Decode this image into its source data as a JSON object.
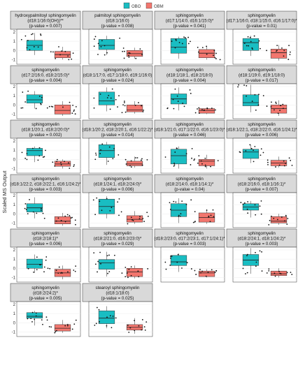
{
  "chart_data": {
    "type": "box",
    "legend": {
      "position": "top",
      "entries": [
        {
          "label": "OBO",
          "color": "#19BDC2"
        },
        {
          "label": "OBM",
          "color": "#F2766E"
        }
      ]
    },
    "ylabel": "Scaled MS Output",
    "yticks": [
      -1,
      0,
      1,
      2
    ],
    "ylim": [
      -1.5,
      2.3
    ],
    "groups": [
      "OBO",
      "OBM"
    ],
    "panels": [
      {
        "strip": [
          "hydroxypalmitoyl sphingomyelin",
          "(d18:1/16:0(OH))**",
          "(p-value = 0.007)"
        ],
        "boxes": [
          {
            "q1": 0.0,
            "median": 0.55,
            "q3": 1.1,
            "lo": -0.5,
            "hi": 1.9
          },
          {
            "q1": -0.8,
            "median": -0.45,
            "q3": -0.1,
            "lo": -1.0,
            "hi": 0.4
          }
        ]
      },
      {
        "strip": [
          "palmitoyl sphingomyelin",
          "(d18:1/16:0)",
          "(p-value = 0.008)"
        ],
        "boxes": [
          {
            "q1": 0.1,
            "median": 0.55,
            "q3": 1.2,
            "lo": -0.5,
            "hi": 1.6
          },
          {
            "q1": -0.65,
            "median": -0.35,
            "q3": 0.0,
            "lo": -0.9,
            "hi": 0.3
          }
        ]
      },
      {
        "strip": [
          "sphingomyelin",
          "(d17:1/14:0, d16:1/15:0)*",
          "(p-value = 0.041)"
        ],
        "boxes": [
          {
            "q1": -0.3,
            "median": 0.35,
            "q3": 1.3,
            "lo": -0.9,
            "hi": 1.5
          },
          {
            "q1": -0.8,
            "median": -0.3,
            "q3": 0.1,
            "lo": -1.0,
            "hi": 0.5
          }
        ]
      },
      {
        "strip": [
          "sphingomyelin",
          "(d17:1/16:0, d18:1/15:0, d16:1/17:0)*",
          "(p-value = 0.01)"
        ],
        "boxes": [
          {
            "q1": 0.0,
            "median": 0.85,
            "q3": 1.3,
            "lo": -0.6,
            "hi": 1.6
          },
          {
            "q1": -0.85,
            "median": -0.25,
            "q3": 0.15,
            "lo": -1.1,
            "hi": 0.6
          }
        ]
      },
      {
        "strip": [
          "sphingomyelin",
          "(d17:2/16:0, d18:2/15:0)*",
          "(p-value = 0.004)"
        ],
        "boxes": [
          {
            "q1": 0.2,
            "median": 0.55,
            "q3": 1.1,
            "lo": -0.4,
            "hi": 1.5
          },
          {
            "q1": -1.0,
            "median": -0.6,
            "q3": 0.0,
            "lo": -1.2,
            "hi": 0.4
          }
        ]
      },
      {
        "strip": [
          "sphingomyelin",
          "(d18:1/17:0, d17:1/18:0, d19:1/16:0)",
          "(p-value = 0.024)"
        ],
        "boxes": [
          {
            "q1": 0.0,
            "median": 0.45,
            "q3": 1.4,
            "lo": -0.7,
            "hi": 1.9
          },
          {
            "q1": -0.75,
            "median": -0.55,
            "q3": 0.0,
            "lo": -0.95,
            "hi": 0.4
          }
        ]
      },
      {
        "strip": [
          "sphingomyelin",
          "(d18:1/18:1, d18:2/18:0)",
          "(p-value = 0.004)"
        ],
        "boxes": [
          {
            "q1": 0.1,
            "median": 0.65,
            "q3": 1.2,
            "lo": -0.6,
            "hi": 1.9
          },
          {
            "q1": -0.9,
            "median": -0.6,
            "q3": -0.4,
            "lo": -1.0,
            "hi": -0.3
          }
        ]
      },
      {
        "strip": [
          "sphingomyelin",
          "(d18:1/19:0, d19:1/18:0)",
          "(p-value = 0.017)"
        ],
        "boxes": [
          {
            "q1": -0.1,
            "median": 0.25,
            "q3": 1.1,
            "lo": -0.8,
            "hi": 2.2
          },
          {
            "q1": -0.9,
            "median": -0.4,
            "q3": 0.0,
            "lo": -1.2,
            "hi": 0.5
          }
        ]
      },
      {
        "strip": [
          "sphingomyelin",
          "(d18:1/20:1, d18:2/20:0)*",
          "(p-value = 0.002)"
        ],
        "boxes": [
          {
            "q1": 0.4,
            "median": 0.95,
            "q3": 1.2,
            "lo": -0.3,
            "hi": 1.4
          },
          {
            "q1": -0.75,
            "median": -0.5,
            "q3": -0.2,
            "lo": -1.0,
            "hi": 0.0
          }
        ]
      },
      {
        "strip": [
          "sphingomyelin",
          "(d18:1/20:2, d18:2/20:1, d16:1/22:2)*",
          "(p-value = 0.014)"
        ],
        "boxes": [
          {
            "q1": 0.2,
            "median": 0.95,
            "q3": 1.6,
            "lo": -0.6,
            "hi": 1.9
          },
          {
            "q1": -0.7,
            "median": -0.5,
            "q3": -0.2,
            "lo": -0.9,
            "hi": 0.3
          }
        ]
      },
      {
        "strip": [
          "sphingomyelin",
          "(d18:1/21:0, d17:1/22:0, d16:1/23:0)*",
          "(p-value = 0.046)"
        ],
        "boxes": [
          {
            "q1": -0.5,
            "median": 0.4,
            "q3": 1.1,
            "lo": -1.0,
            "hi": 1.4
          },
          {
            "q1": -0.7,
            "median": -0.2,
            "q3": 0.0,
            "lo": -1.0,
            "hi": 0.5
          }
        ]
      },
      {
        "strip": [
          "sphingomyelin",
          "(d18:1/22:1, d18:2/22:0, d16:1/24:1)*",
          "(p-value = 0.006)"
        ],
        "boxes": [
          {
            "q1": 0.1,
            "median": 0.8,
            "q3": 1.1,
            "lo": -0.4,
            "hi": 1.6
          },
          {
            "q1": -0.7,
            "median": -0.4,
            "q3": -0.1,
            "lo": -0.9,
            "hi": 0.3
          }
        ]
      },
      {
        "strip": [
          "sphingomyelin",
          "(d18:1/22:2, d18:2/22:1, d16:1/24:2)*",
          "(p-value = 0.003)"
        ],
        "boxes": [
          {
            "q1": 0.2,
            "median": 0.65,
            "q3": 1.1,
            "lo": -0.5,
            "hi": 1.8
          },
          {
            "q1": -1.1,
            "median": -0.8,
            "q3": -0.3,
            "lo": -1.3,
            "hi": 0.1
          }
        ]
      },
      {
        "strip": [
          "sphingomyelin",
          "(d18:1/24:1, d18:2/24:0)*",
          "(p-value = 0.006)"
        ],
        "boxes": [
          {
            "q1": 0.0,
            "median": 0.8,
            "q3": 1.6,
            "lo": -0.5,
            "hi": 1.9
          },
          {
            "q1": -0.9,
            "median": -0.6,
            "q3": -0.2,
            "lo": -1.1,
            "hi": 0.3
          }
        ]
      },
      {
        "strip": [
          "sphingomyelin",
          "(d18:2/14:0, d18:1/14:1)*",
          "(p-value = 0.04)"
        ],
        "boxes": [
          {
            "q1": -0.3,
            "median": 0.4,
            "q3": 1.1,
            "lo": -1.0,
            "hi": 1.7
          },
          {
            "q1": -0.9,
            "median": -0.4,
            "q3": 0.1,
            "lo": -1.1,
            "hi": 0.5
          }
        ]
      },
      {
        "strip": [
          "sphingomyelin",
          "(d18:2/16:0, d18:1/16:1)*",
          "(p-value = 0.007)"
        ],
        "boxes": [
          {
            "q1": 0.4,
            "median": 0.75,
            "q3": 1.1,
            "lo": -0.4,
            "hi": 1.4
          },
          {
            "q1": -1.0,
            "median": -0.8,
            "q3": -0.3,
            "lo": -1.2,
            "hi": 0.0
          }
        ]
      },
      {
        "strip": [
          "sphingomyelin",
          "(d18:2/18:1)*",
          "(p-value = 0.006)"
        ],
        "boxes": [
          {
            "q1": 0.0,
            "median": 0.45,
            "q3": 1.0,
            "lo": -0.5,
            "hi": 1.5
          },
          {
            "q1": -0.9,
            "median": -0.5,
            "q3": -0.1,
            "lo": -1.2,
            "hi": 0.3
          }
        ]
      },
      {
        "strip": [
          "sphingomyelin",
          "(d18:2/21:0, d16:2/23:0)*",
          "(p-value = 0.029)"
        ],
        "boxes": [
          {
            "q1": -0.1,
            "median": 0.6,
            "q3": 0.95,
            "lo": -0.9,
            "hi": 1.8
          },
          {
            "q1": -0.9,
            "median": -0.4,
            "q3": 0.0,
            "lo": -1.1,
            "hi": 0.3
          }
        ]
      },
      {
        "strip": [
          "sphingomyelin",
          "(d18:2/23:0, d17:2/23:1, d17:1/24:1)*",
          "(p-value = 0.003)"
        ],
        "boxes": [
          {
            "q1": 0.3,
            "median": 0.7,
            "q3": 1.4,
            "lo": -0.4,
            "hi": 1.6
          },
          {
            "q1": -0.9,
            "median": -0.5,
            "q3": -0.3,
            "lo": -1.0,
            "hi": -0.1
          }
        ]
      },
      {
        "strip": [
          "sphingomyelin",
          "(d18:2/24:1, d18:1/24:2)*",
          "(p-value = 0.003)"
        ],
        "boxes": [
          {
            "q1": 0.3,
            "median": 0.9,
            "q3": 1.5,
            "lo": -0.6,
            "hi": 2.2
          },
          {
            "q1": -0.8,
            "median": -0.6,
            "q3": -0.3,
            "lo": -1.0,
            "hi": 0.0
          }
        ]
      },
      {
        "strip": [
          "sphingomyelin",
          "(d18:2/24:2)*",
          "(p-value = 0.005)"
        ],
        "boxes": [
          {
            "q1": 0.5,
            "median": 0.7,
            "q3": 1.1,
            "lo": -0.3,
            "hi": 1.3
          },
          {
            "q1": -0.9,
            "median": -0.6,
            "q3": -0.2,
            "lo": -1.1,
            "hi": 0.3
          }
        ]
      },
      {
        "strip": [
          "stearoyl sphingomyelin",
          "(d18:1/18:0)",
          "(p-value = 0.025)"
        ],
        "boxes": [
          {
            "q1": -0.1,
            "median": 0.5,
            "q3": 1.3,
            "lo": -0.6,
            "hi": 1.8
          },
          {
            "q1": -0.8,
            "median": -0.5,
            "q3": -0.2,
            "lo": -1.2,
            "hi": 0.5
          }
        ]
      }
    ]
  }
}
